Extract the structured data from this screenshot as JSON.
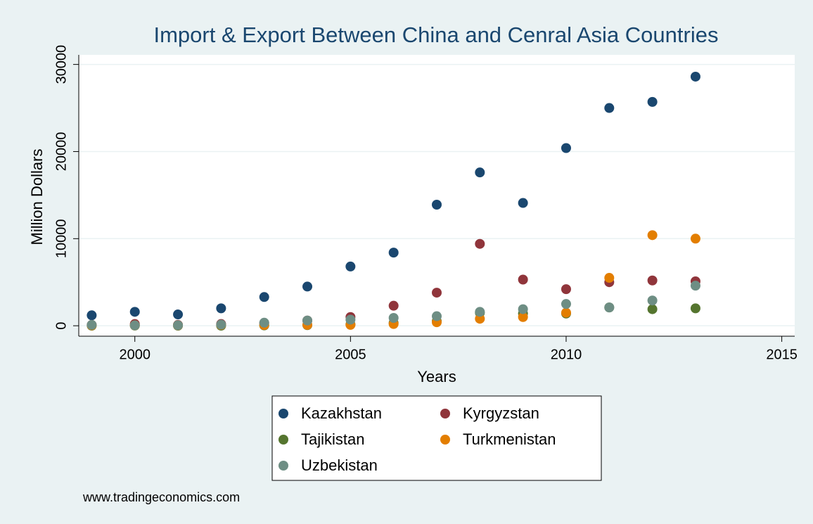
{
  "chart_data": {
    "type": "scatter",
    "title": "Import & Export Between China and Cenral Asia Countries",
    "x_label": "Years",
    "y_label": "Million Dollars",
    "source": "www.tradingeconomics.com",
    "x": [
      1999,
      2000,
      2001,
      2002,
      2003,
      2004,
      2005,
      2006,
      2007,
      2008,
      2009,
      2010,
      2011,
      2012,
      2013
    ],
    "series": [
      {
        "name": "Kazakhstan",
        "color": "#1a476f",
        "values": [
          1200,
          1600,
          1300,
          2000,
          3300,
          4500,
          6800,
          8400,
          13900,
          17600,
          14100,
          20400,
          25000,
          25700,
          28600
        ]
      },
      {
        "name": "Kyrgyzstan",
        "color": "#90353b",
        "values": [
          100,
          200,
          100,
          200,
          300,
          600,
          1000,
          2300,
          3800,
          9400,
          5300,
          4200,
          5000,
          5200,
          5100
        ]
      },
      {
        "name": "Tajikistan",
        "color": "#55752f",
        "values": [
          10,
          20,
          10,
          10,
          40,
          70,
          160,
          320,
          520,
          1500,
          1400,
          1400,
          2100,
          1900,
          2000
        ]
      },
      {
        "name": "Turkmenistan",
        "color": "#e37e00",
        "values": [
          50,
          50,
          50,
          90,
          80,
          100,
          100,
          200,
          400,
          800,
          1000,
          1500,
          5500,
          10400,
          10000
        ]
      },
      {
        "name": "Uzbekistan",
        "color": "#6e8e84",
        "values": [
          100,
          50,
          60,
          130,
          350,
          600,
          700,
          900,
          1100,
          1600,
          1900,
          2500,
          2100,
          2900,
          4600
        ]
      }
    ],
    "xlim": [
      1998.7,
      2015.3
    ],
    "xticks": [
      2000,
      2005,
      2010,
      2015
    ],
    "ylim": [
      -1200,
      31100
    ],
    "yticks": [
      0,
      10000,
      20000,
      30000
    ],
    "grid": true,
    "legend": "bottom"
  }
}
